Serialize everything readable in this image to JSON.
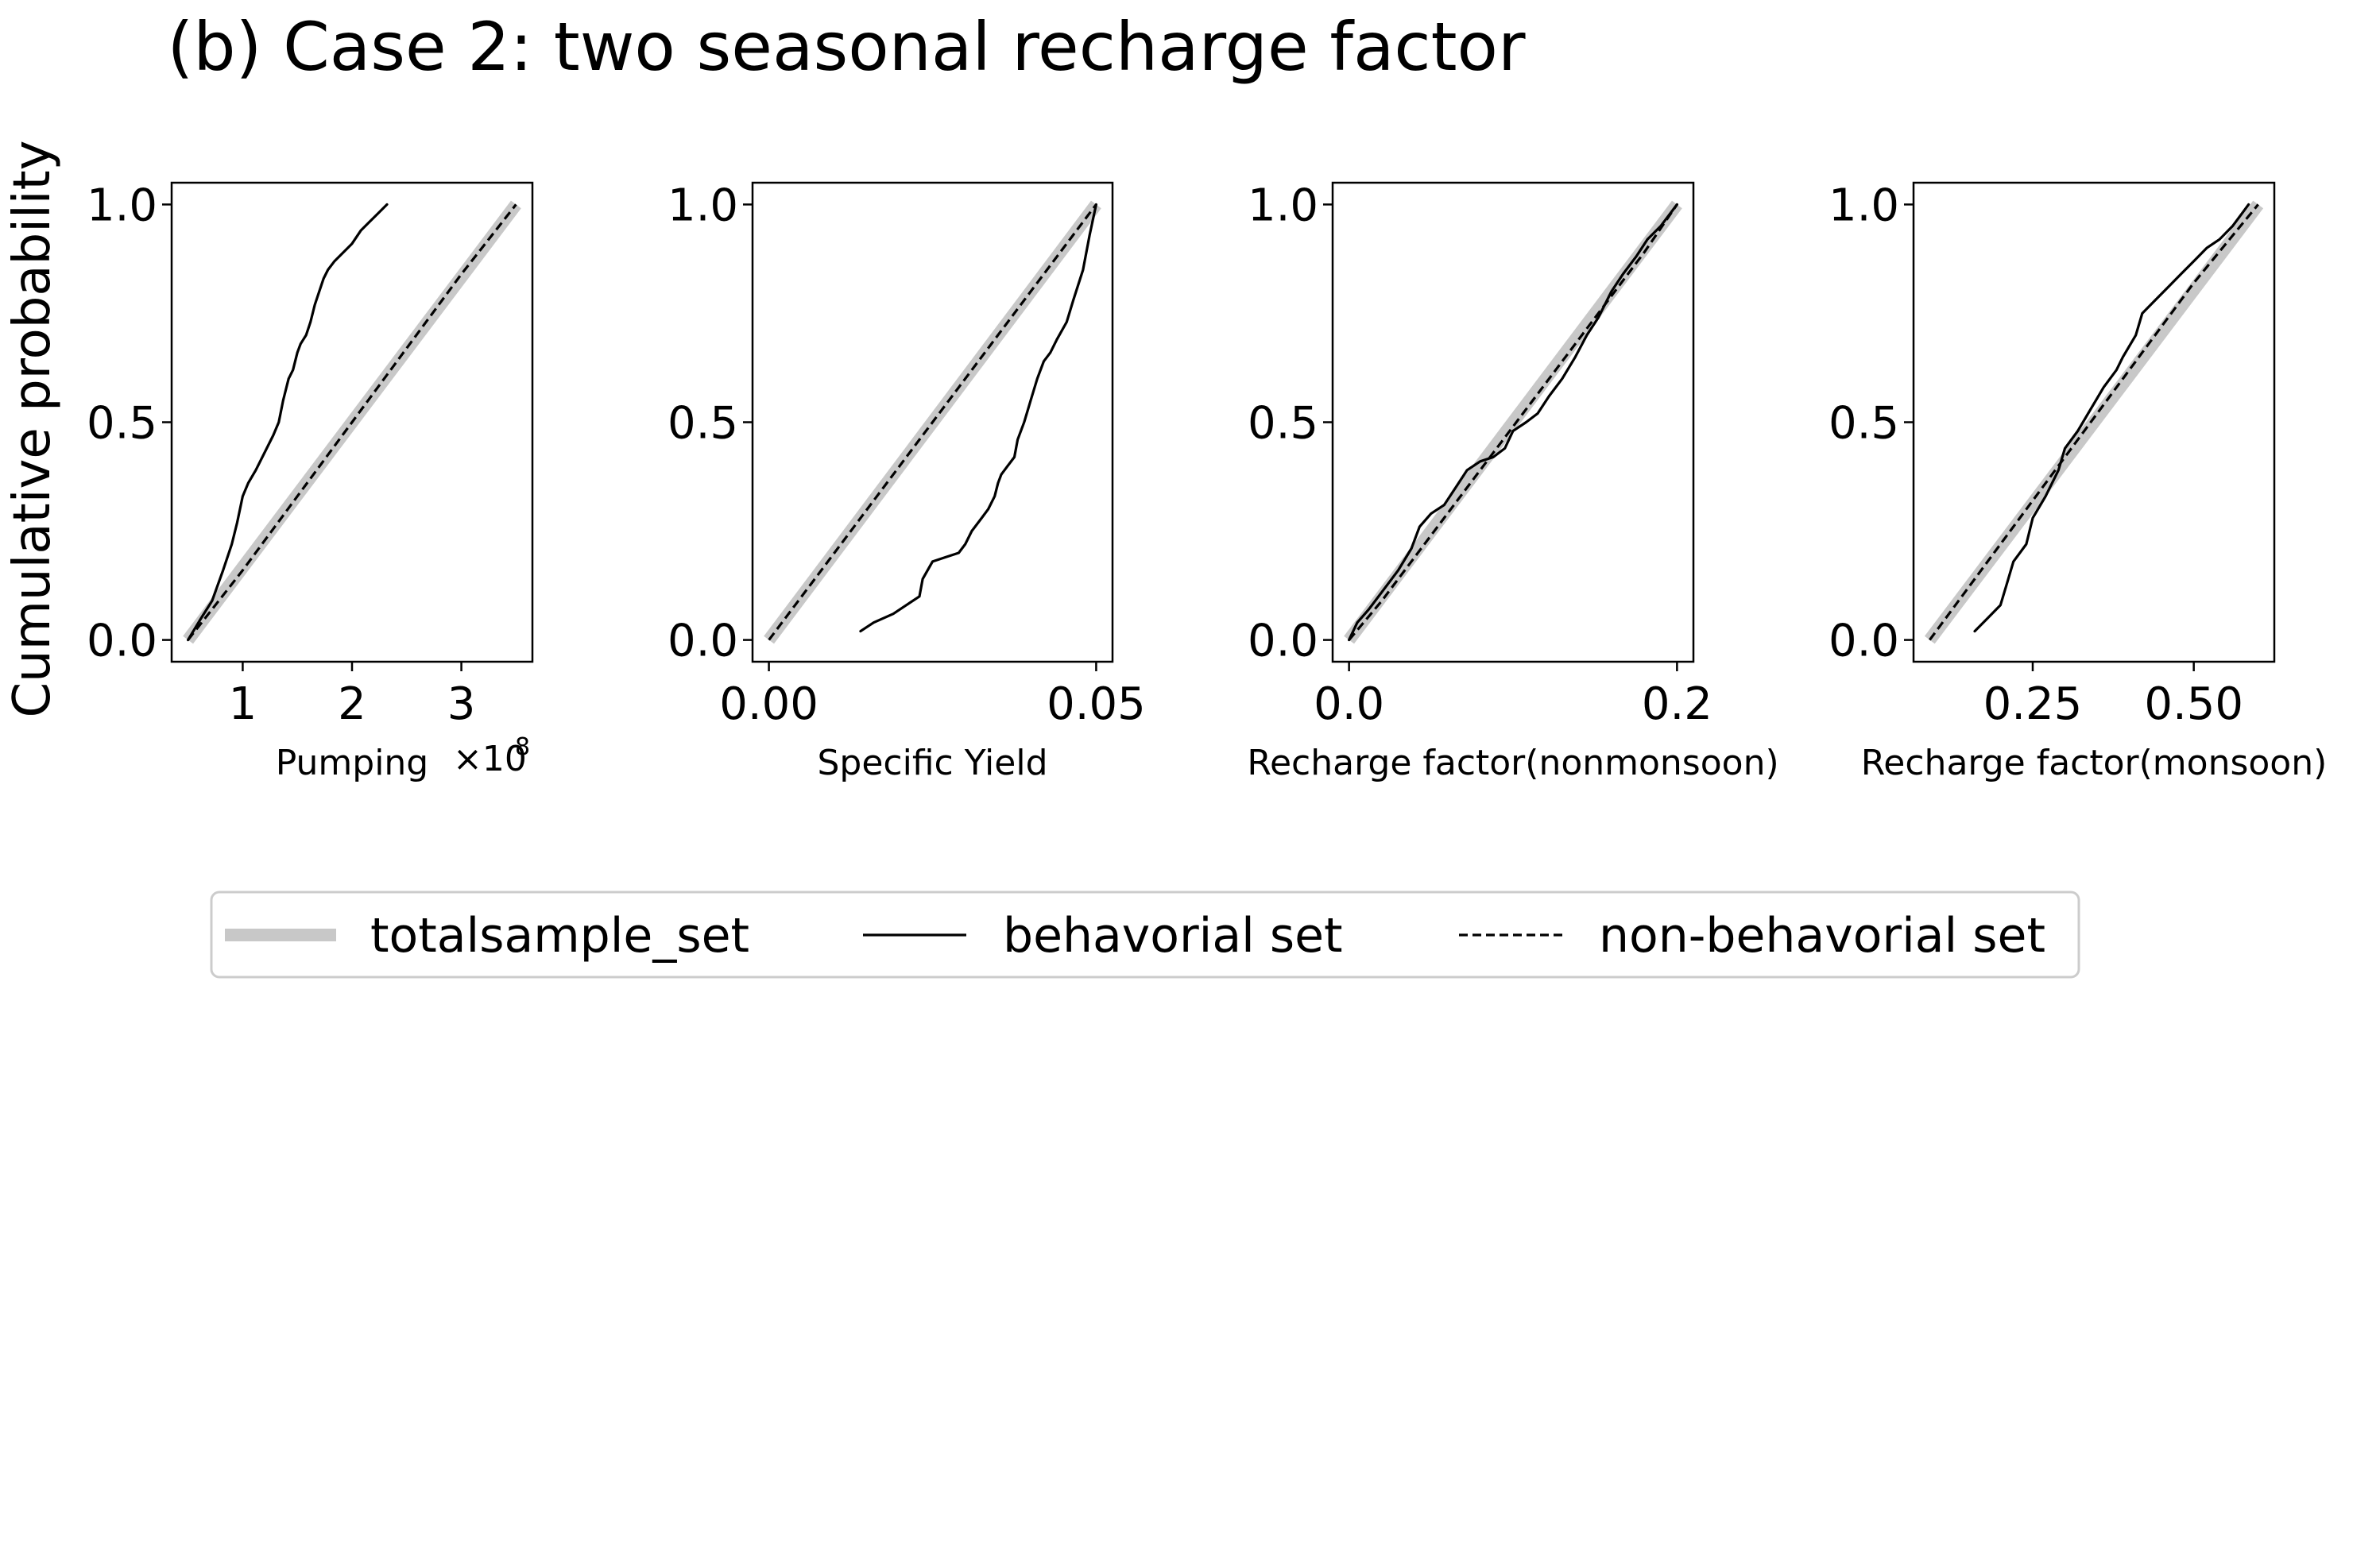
{
  "figure": {
    "title": "(b) Case 2: two seasonal recharge factor",
    "ylabel": "Cumulative probability"
  },
  "legend": {
    "entries": [
      {
        "label": "totalsample_set",
        "style": "thick-gray",
        "color": "#c8c8c8"
      },
      {
        "label": "behavorial set",
        "style": "solid",
        "color": "#000000"
      },
      {
        "label": "non-behavorial set",
        "style": "dashed",
        "color": "#000000"
      }
    ]
  },
  "chart_data": [
    {
      "type": "line",
      "xlabel": "Pumping",
      "x_offset_label": {
        "base": "×10",
        "exp": "8"
      },
      "xlim": [
        0.35,
        3.65
      ],
      "ylim": [
        -0.05,
        1.05
      ],
      "xticks": [
        1,
        2,
        3
      ],
      "xticklabels": [
        "1",
        "2",
        "3"
      ],
      "yticks": [
        0.0,
        0.5,
        1.0
      ],
      "yticklabels": [
        "0.0",
        "0.5",
        "1.0"
      ],
      "show_ylabel": true,
      "series": [
        {
          "name": "totalsample_set",
          "x": [
            0.5,
            3.5
          ],
          "y": [
            0.0,
            1.0
          ]
        },
        {
          "name": "behavorial set",
          "x": [
            0.5,
            0.62,
            0.72,
            0.82,
            0.9,
            0.95,
            1.0,
            1.05,
            1.12,
            1.2,
            1.28,
            1.33,
            1.37,
            1.42,
            1.46,
            1.5,
            1.53,
            1.58,
            1.62,
            1.66,
            1.7,
            1.74,
            1.78,
            1.84,
            1.92,
            2.0,
            2.08,
            2.16,
            2.24,
            2.32
          ],
          "y": [
            0.0,
            0.05,
            0.09,
            0.16,
            0.22,
            0.27,
            0.33,
            0.36,
            0.39,
            0.43,
            0.47,
            0.5,
            0.55,
            0.6,
            0.62,
            0.66,
            0.68,
            0.7,
            0.73,
            0.77,
            0.8,
            0.83,
            0.85,
            0.87,
            0.89,
            0.91,
            0.94,
            0.96,
            0.98,
            1.0
          ]
        },
        {
          "name": "non-behavorial set",
          "x": [
            0.5,
            1.0,
            1.5,
            2.0,
            2.5,
            3.0,
            3.5
          ],
          "y": [
            0.0,
            0.16,
            0.33,
            0.5,
            0.67,
            0.84,
            1.0
          ]
        }
      ]
    },
    {
      "type": "line",
      "xlabel": "Specific Yield",
      "xlim": [
        -0.0025,
        0.0525
      ],
      "ylim": [
        -0.05,
        1.05
      ],
      "xticks": [
        0.0,
        0.05
      ],
      "xticklabels": [
        "0.00",
        "0.05"
      ],
      "yticks": [
        0.0,
        0.5,
        1.0
      ],
      "yticklabels": [
        "0.0",
        "0.5",
        "1.0"
      ],
      "show_ylabel": false,
      "series": [
        {
          "name": "totalsample_set",
          "x": [
            0.0,
            0.05
          ],
          "y": [
            0.0,
            1.0
          ]
        },
        {
          "name": "behavorial set",
          "x": [
            0.014,
            0.016,
            0.019,
            0.021,
            0.023,
            0.0235,
            0.025,
            0.027,
            0.029,
            0.03,
            0.031,
            0.0325,
            0.0335,
            0.0345,
            0.035,
            0.0355,
            0.0365,
            0.0375,
            0.038,
            0.039,
            0.04,
            0.041,
            0.042,
            0.043,
            0.044,
            0.0455,
            0.0465,
            0.048,
            0.049,
            0.05
          ],
          "y": [
            0.02,
            0.04,
            0.06,
            0.08,
            0.1,
            0.14,
            0.18,
            0.19,
            0.2,
            0.22,
            0.25,
            0.28,
            0.3,
            0.33,
            0.36,
            0.38,
            0.4,
            0.42,
            0.46,
            0.5,
            0.55,
            0.6,
            0.64,
            0.66,
            0.69,
            0.73,
            0.78,
            0.85,
            0.93,
            1.0
          ]
        },
        {
          "name": "non-behavorial set",
          "x": [
            0.0,
            0.01,
            0.02,
            0.03,
            0.04,
            0.05
          ],
          "y": [
            0.0,
            0.2,
            0.4,
            0.6,
            0.8,
            1.0
          ]
        }
      ]
    },
    {
      "type": "line",
      "xlabel": "Recharge factor(nonmonsoon)",
      "xlim": [
        -0.01,
        0.21
      ],
      "ylim": [
        -0.05,
        1.05
      ],
      "xticks": [
        0.0,
        0.2
      ],
      "xticklabels": [
        "0.0",
        "0.2"
      ],
      "yticks": [
        0.0,
        0.5,
        1.0
      ],
      "yticklabels": [
        "0.0",
        "0.5",
        "1.0"
      ],
      "show_ylabel": false,
      "series": [
        {
          "name": "totalsample_set",
          "x": [
            0.0,
            0.2
          ],
          "y": [
            0.0,
            1.0
          ]
        },
        {
          "name": "behavorial set",
          "x": [
            0.0,
            0.005,
            0.012,
            0.02,
            0.03,
            0.038,
            0.043,
            0.05,
            0.058,
            0.065,
            0.072,
            0.08,
            0.088,
            0.095,
            0.1,
            0.108,
            0.115,
            0.122,
            0.13,
            0.138,
            0.145,
            0.152,
            0.16,
            0.167,
            0.175,
            0.182,
            0.19,
            0.2
          ],
          "y": [
            0.0,
            0.04,
            0.07,
            0.11,
            0.16,
            0.21,
            0.26,
            0.29,
            0.31,
            0.35,
            0.39,
            0.41,
            0.42,
            0.44,
            0.48,
            0.5,
            0.52,
            0.56,
            0.6,
            0.65,
            0.7,
            0.74,
            0.8,
            0.84,
            0.88,
            0.92,
            0.95,
            1.0
          ]
        },
        {
          "name": "non-behavorial set",
          "x": [
            0.0,
            0.02,
            0.05,
            0.08,
            0.1,
            0.12,
            0.15,
            0.18,
            0.2
          ],
          "y": [
            0.0,
            0.09,
            0.24,
            0.39,
            0.49,
            0.59,
            0.74,
            0.89,
            1.0
          ]
        }
      ]
    },
    {
      "type": "line",
      "xlabel": "Recharge factor(monsoon)",
      "xlim": [
        0.065,
        0.625
      ],
      "ylim": [
        -0.05,
        1.05
      ],
      "xticks": [
        0.25,
        0.5
      ],
      "xticklabels": [
        "0.25",
        "0.50"
      ],
      "yticks": [
        0.0,
        0.5,
        1.0
      ],
      "yticklabels": [
        "0.0",
        "0.5",
        "1.0"
      ],
      "show_ylabel": false,
      "series": [
        {
          "name": "totalsample_set",
          "x": [
            0.09,
            0.6
          ],
          "y": [
            0.0,
            1.0
          ]
        },
        {
          "name": "behavorial set",
          "x": [
            0.16,
            0.18,
            0.2,
            0.21,
            0.22,
            0.24,
            0.25,
            0.27,
            0.29,
            0.3,
            0.32,
            0.34,
            0.36,
            0.38,
            0.39,
            0.41,
            0.42,
            0.44,
            0.46,
            0.48,
            0.5,
            0.52,
            0.54,
            0.56,
            0.575,
            0.585
          ],
          "y": [
            0.02,
            0.05,
            0.08,
            0.13,
            0.18,
            0.22,
            0.28,
            0.33,
            0.39,
            0.44,
            0.48,
            0.53,
            0.58,
            0.62,
            0.65,
            0.7,
            0.75,
            0.78,
            0.81,
            0.84,
            0.87,
            0.9,
            0.92,
            0.95,
            0.98,
            1.0
          ]
        },
        {
          "name": "non-behavorial set",
          "x": [
            0.09,
            0.2,
            0.3,
            0.4,
            0.5,
            0.6
          ],
          "y": [
            0.0,
            0.22,
            0.42,
            0.62,
            0.82,
            1.0
          ]
        }
      ]
    }
  ]
}
